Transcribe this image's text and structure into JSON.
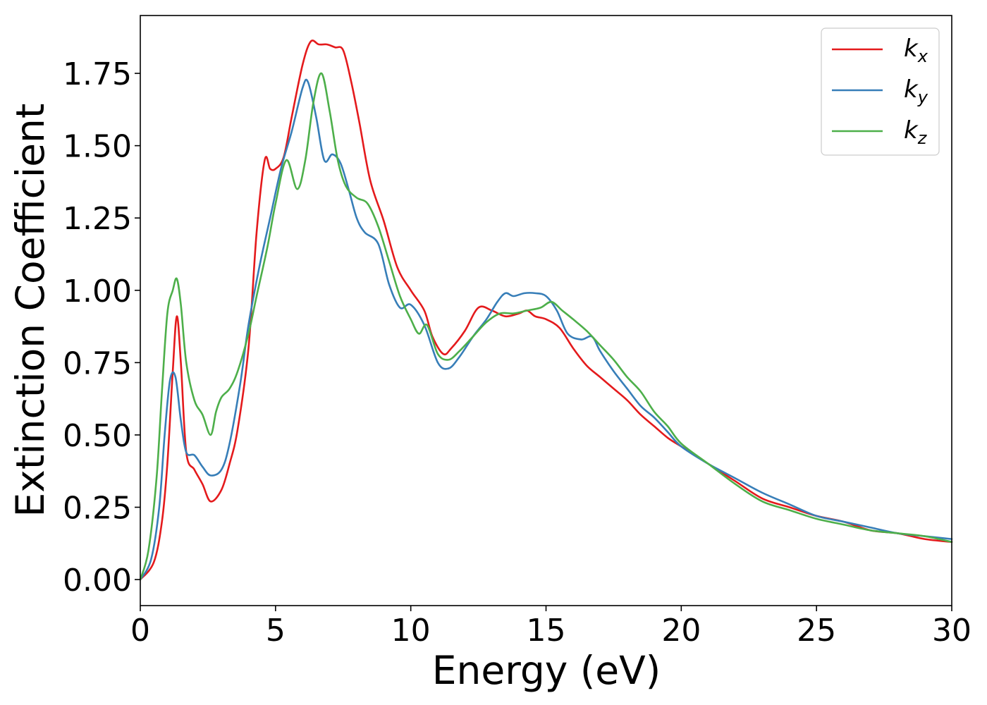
{
  "chart_data": {
    "type": "line",
    "title": "",
    "xlabel": "Energy (eV)",
    "ylabel": "Extinction Coefficient",
    "xlim": [
      0,
      30
    ],
    "ylim": [
      -0.09,
      1.95
    ],
    "xticks": [
      0,
      5,
      10,
      15,
      20,
      25,
      30
    ],
    "xtick_labels": [
      "0",
      "5",
      "10",
      "15",
      "20",
      "25",
      "30"
    ],
    "yticks": [
      0.0,
      0.25,
      0.5,
      0.75,
      1.0,
      1.25,
      1.5,
      1.75
    ],
    "ytick_labels": [
      "0.00",
      "0.25",
      "0.50",
      "0.75",
      "1.00",
      "1.25",
      "1.50",
      "1.75"
    ],
    "grid": false,
    "legend_position": "top-right",
    "series": [
      {
        "name": "k_x",
        "label_main": "k",
        "label_sub": "x",
        "color": "#e41a1c",
        "x": [
          0,
          0.5,
          0.8,
          1.0,
          1.2,
          1.35,
          1.5,
          1.7,
          2.0,
          2.3,
          2.6,
          3.0,
          3.3,
          3.6,
          4.0,
          4.3,
          4.6,
          4.8,
          5.0,
          5.3,
          5.6,
          6.0,
          6.3,
          6.6,
          6.9,
          7.2,
          7.5,
          7.8,
          8.1,
          8.5,
          9.0,
          9.5,
          10.0,
          10.5,
          10.8,
          11.2,
          11.5,
          12.0,
          12.5,
          13.0,
          13.5,
          14.0,
          14.3,
          14.6,
          15.0,
          15.5,
          16.0,
          16.5,
          17.0,
          17.5,
          18.0,
          18.5,
          19.0,
          19.5,
          20.0,
          20.5,
          21.0,
          22.0,
          23.0,
          24.0,
          25.0,
          26.0,
          27.0,
          28.0,
          29.0,
          30.0
        ],
        "y": [
          0,
          0.06,
          0.2,
          0.4,
          0.72,
          0.91,
          0.75,
          0.44,
          0.38,
          0.33,
          0.27,
          0.31,
          0.4,
          0.52,
          0.8,
          1.2,
          1.45,
          1.42,
          1.42,
          1.46,
          1.6,
          1.78,
          1.86,
          1.85,
          1.85,
          1.84,
          1.83,
          1.72,
          1.58,
          1.38,
          1.24,
          1.08,
          1.0,
          0.93,
          0.84,
          0.78,
          0.8,
          0.86,
          0.94,
          0.93,
          0.91,
          0.92,
          0.93,
          0.91,
          0.9,
          0.87,
          0.8,
          0.74,
          0.7,
          0.66,
          0.62,
          0.57,
          0.53,
          0.49,
          0.46,
          0.43,
          0.4,
          0.34,
          0.28,
          0.25,
          0.22,
          0.2,
          0.17,
          0.16,
          0.14,
          0.13
        ]
      },
      {
        "name": "k_y",
        "label_main": "k",
        "label_sub": "y",
        "color": "#377eb8",
        "x": [
          0,
          0.4,
          0.7,
          0.9,
          1.1,
          1.3,
          1.5,
          1.7,
          2.0,
          2.3,
          2.6,
          3.0,
          3.3,
          3.7,
          4.0,
          4.4,
          4.8,
          5.2,
          5.6,
          6.0,
          6.2,
          6.5,
          6.8,
          7.1,
          7.4,
          7.7,
          8.0,
          8.3,
          8.8,
          9.2,
          9.6,
          10.0,
          10.5,
          11.0,
          11.4,
          11.8,
          12.3,
          12.8,
          13.2,
          13.5,
          13.8,
          14.2,
          14.6,
          15.0,
          15.4,
          15.8,
          16.3,
          16.7,
          17.0,
          17.5,
          18.0,
          18.5,
          19.0,
          19.5,
          20.0,
          21.0,
          22.0,
          23.0,
          24.0,
          25.0,
          26.0,
          27.0,
          28.0,
          29.0,
          30.0
        ],
        "y": [
          0,
          0.07,
          0.25,
          0.5,
          0.69,
          0.7,
          0.55,
          0.44,
          0.43,
          0.39,
          0.36,
          0.38,
          0.47,
          0.68,
          0.88,
          1.08,
          1.25,
          1.42,
          1.55,
          1.7,
          1.72,
          1.6,
          1.45,
          1.47,
          1.44,
          1.35,
          1.25,
          1.2,
          1.16,
          1.02,
          0.94,
          0.95,
          0.88,
          0.75,
          0.73,
          0.77,
          0.84,
          0.9,
          0.96,
          0.99,
          0.98,
          0.99,
          0.99,
          0.98,
          0.93,
          0.85,
          0.83,
          0.84,
          0.79,
          0.72,
          0.66,
          0.6,
          0.56,
          0.51,
          0.46,
          0.4,
          0.35,
          0.3,
          0.26,
          0.22,
          0.2,
          0.18,
          0.16,
          0.15,
          0.14
        ]
      },
      {
        "name": "k_z",
        "label_main": "k",
        "label_sub": "z",
        "color": "#4daf4a",
        "x": [
          0,
          0.3,
          0.6,
          0.8,
          1.0,
          1.2,
          1.35,
          1.5,
          1.7,
          2.0,
          2.3,
          2.6,
          2.8,
          3.0,
          3.3,
          3.6,
          4.0,
          4.3,
          4.7,
          5.0,
          5.4,
          5.8,
          6.1,
          6.4,
          6.7,
          7.0,
          7.3,
          7.6,
          8.0,
          8.4,
          8.8,
          9.2,
          9.6,
          10.0,
          10.3,
          10.6,
          11.0,
          11.4,
          11.8,
          12.3,
          12.8,
          13.3,
          13.8,
          14.3,
          14.8,
          15.2,
          15.6,
          16.0,
          16.5,
          17.0,
          17.5,
          18.0,
          18.5,
          19.0,
          19.5,
          20.0,
          21.0,
          22.0,
          23.0,
          24.0,
          25.0,
          26.0,
          27.0,
          28.0,
          29.0,
          30.0
        ],
        "y": [
          0,
          0.1,
          0.35,
          0.65,
          0.92,
          1.0,
          1.04,
          0.95,
          0.75,
          0.62,
          0.57,
          0.5,
          0.58,
          0.63,
          0.66,
          0.72,
          0.85,
          0.98,
          1.15,
          1.3,
          1.45,
          1.35,
          1.45,
          1.65,
          1.75,
          1.62,
          1.45,
          1.36,
          1.32,
          1.3,
          1.22,
          1.1,
          0.98,
          0.9,
          0.85,
          0.88,
          0.78,
          0.76,
          0.79,
          0.84,
          0.89,
          0.92,
          0.92,
          0.93,
          0.94,
          0.96,
          0.93,
          0.9,
          0.86,
          0.81,
          0.76,
          0.7,
          0.65,
          0.58,
          0.53,
          0.47,
          0.4,
          0.33,
          0.27,
          0.24,
          0.21,
          0.19,
          0.17,
          0.16,
          0.15,
          0.13
        ]
      }
    ]
  }
}
